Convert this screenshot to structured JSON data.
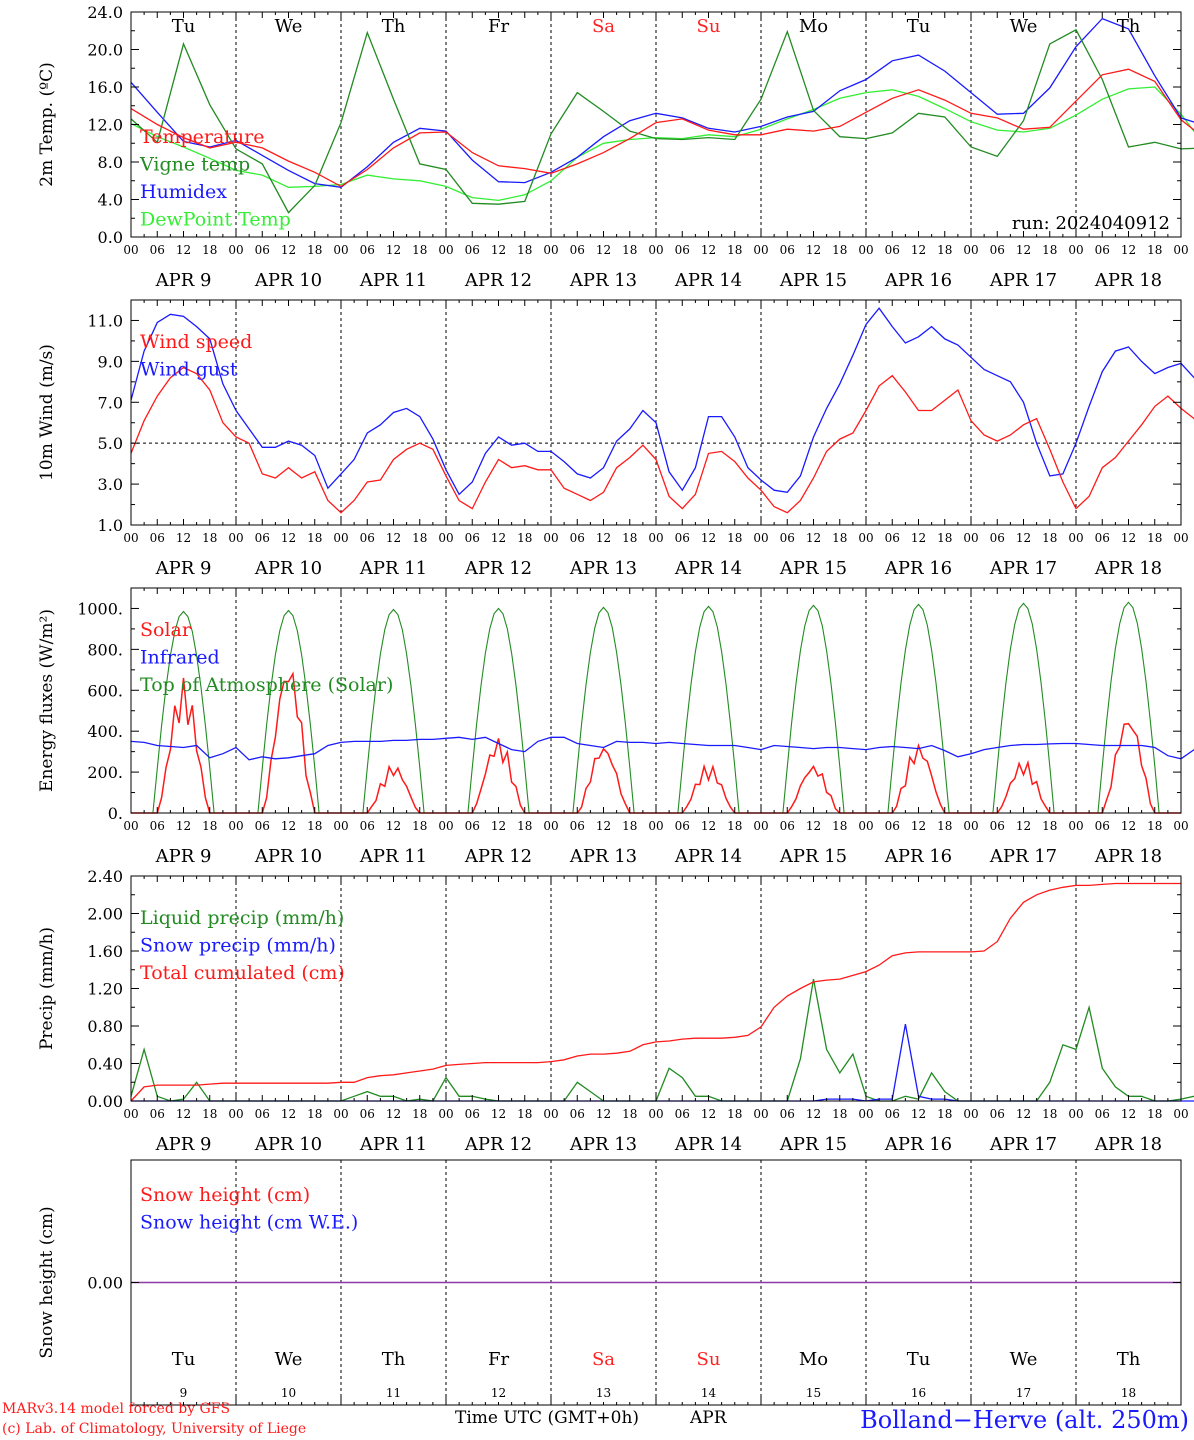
{
  "days": [
    "Tu",
    "We",
    "Th",
    "Fr",
    "Sa",
    "Su",
    "Mo",
    "Tu",
    "We",
    "Th"
  ],
  "weekend_days": [
    4,
    5
  ],
  "date_labels": [
    "APR  9",
    "APR 10",
    "APR 11",
    "APR 12",
    "APR 13",
    "APR 14",
    "APR 15",
    "APR 16",
    "APR 17",
    "APR 18"
  ],
  "hour_ticks": [
    "00",
    "06",
    "12",
    "18"
  ],
  "bottom_day_numbers": [
    "9",
    "10",
    "11",
    "12",
    "13",
    "14",
    "15",
    "16",
    "17",
    "18"
  ],
  "colors": {
    "red": "#ff1a1a",
    "green": "#228b22",
    "blue": "#1a1aff",
    "lightgreen": "#33ee33",
    "purple": "#8b3aa8",
    "weekend": "#ff2222"
  },
  "footer": {
    "model": "MARv3.14 model forced by GFS",
    "lab": "(c) Lab. of Climatology, University of Liege",
    "xlabel": "Time UTC (GMT+0h)",
    "month": "APR",
    "station": "Bolland−Herve (alt. 250m)"
  },
  "chart_data": [
    {
      "id": "temperature",
      "type": "line",
      "ylabel": "2m Temp. (ºC)",
      "ylim": [
        0,
        24
      ],
      "yticks": [
        "0.0",
        "4.0",
        "8.0",
        "12.0",
        "16.0",
        "20.0",
        "24.0"
      ],
      "annotation": "run: 2024040912",
      "show_days": true,
      "hour_step": 6,
      "series": [
        {
          "name": "Temperature",
          "color": "red",
          "values": [
            13.7,
            12,
            10.6,
            9.5,
            10.1,
            9.5,
            8.1,
            6.9,
            5.4,
            7.2,
            9.5,
            11.1,
            11.2,
            9,
            7.6,
            7.3,
            6.8,
            7.8,
            9,
            10.5,
            12.2,
            12.6,
            11.4,
            10.9,
            10.9,
            11.5,
            11.3,
            11.8,
            13.3,
            14.8,
            15.7,
            14.6,
            13.2,
            12.7,
            11.5,
            11.7,
            14.5,
            17.3,
            17.9,
            16.6,
            12.5,
            10.3,
            9.8,
            9.9,
            9.6,
            9,
            8.6,
            7.6,
            6.1,
            5.6,
            5.9,
            6,
            5.7,
            6.1,
            5.5,
            5.1,
            4.9,
            4.6,
            4,
            3.4,
            4.7,
            5.4,
            5.4,
            3.9,
            3.3,
            3,
            3.7,
            3.1,
            3.5,
            4.2,
            6.6,
            7.6,
            7.2,
            6.4,
            5.8,
            6.2,
            7.6,
            8.8,
            6.8,
            4.6
          ]
        },
        {
          "name": "Vigne temp",
          "color": "green",
          "values": [
            12.6,
            10.1,
            20.6,
            14.1,
            9.4,
            7.8,
            2.6,
            5.5,
            12.2,
            21.8,
            14.7,
            7.8,
            7.2,
            3.6,
            3.5,
            3.8,
            11,
            15.4,
            13.4,
            11.3,
            10.5,
            10.4,
            10.6,
            10.4,
            14.7,
            21.9,
            13.5,
            10.7,
            10.5,
            11.1,
            13.2,
            12.8,
            9.6,
            8.6,
            12.4,
            20.6,
            22.1,
            16.8,
            9.6,
            10.1,
            9.4,
            9.5,
            12.1,
            13.1,
            13.7,
            7,
            6.5,
            7.7,
            4.8,
            4.4,
            5,
            4.7,
            5.2,
            9.9,
            5.3,
            4.2,
            4.4,
            4.2,
            3.6,
            3.3,
            4.1,
            11.2,
            5,
            1,
            0,
            1.3,
            4.7,
            2.6,
            4.1,
            6.2,
            8.6,
            7.8,
            6.8,
            6.1,
            5.9,
            9.5,
            13.3,
            15.8,
            7.2,
            1.6
          ]
        },
        {
          "name": "Humidex",
          "color": "blue",
          "values": [
            16.5,
            13.3,
            10.2,
            9.6,
            10.3,
            8.7,
            7.1,
            5.7,
            5.3,
            7.5,
            10.1,
            11.6,
            11.3,
            8.2,
            5.9,
            5.8,
            6.9,
            8.5,
            10.7,
            12.4,
            13.2,
            12.7,
            11.6,
            11.2,
            11.8,
            12.8,
            13.4,
            15.6,
            16.8,
            18.8,
            19.4,
            17.7,
            15.4,
            13.1,
            13.2,
            15.9,
            20.3,
            23.3,
            22.2,
            17.2,
            12.7,
            11.8,
            10.7,
            10,
            9.5,
            8.4,
            7.8,
            6.1,
            6,
            5.3,
            5.4,
            5.4,
            5.8,
            5.6,
            5.2,
            4.6,
            4.2,
            3.8,
            3,
            2.3,
            1.4,
            4.3,
            5.1,
            3,
            2.4,
            1.7,
            3.1,
            3.2,
            3.7,
            5.7,
            6.9,
            7.4,
            6.9,
            6.2,
            5.6,
            6.3,
            7.9,
            8.5,
            6.1,
            3.9
          ]
        },
        {
          "name": "DewPoint Temp",
          "color": "lightgreen",
          "values": [
            12.1,
            10.7,
            9.6,
            8.4,
            7.1,
            6.6,
            5.3,
            5.4,
            5.6,
            6.6,
            6.2,
            6,
            5.4,
            4.2,
            3.9,
            4.5,
            6,
            8.5,
            10,
            10.4,
            10.6,
            10.5,
            10.9,
            10.7,
            11.5,
            12.6,
            13.6,
            14.8,
            15.4,
            15.7,
            15,
            13.7,
            12.3,
            11.4,
            11.2,
            11.6,
            13,
            14.7,
            15.8,
            16,
            13.1,
            9.4,
            9.2,
            9.2,
            8.6,
            8.5,
            7.8,
            6.6,
            5.2,
            5.3,
            5.7,
            6.2,
            5.8,
            5.8,
            5.1,
            4.8,
            4.4,
            3.9,
            3.2,
            3,
            3.5,
            5.2,
            4.1,
            2.5,
            2.3,
            2.3,
            2.7,
            3,
            3.3,
            5.8,
            6.5,
            7.2,
            6.7,
            6.3,
            5.9,
            6.1,
            6.7,
            6.6,
            5.5,
            4.9
          ]
        }
      ]
    },
    {
      "id": "wind",
      "type": "line",
      "ylabel": "10m Wind (m/s)",
      "ylim": [
        1,
        12
      ],
      "yticks": [
        "1.0",
        "3.0",
        "5.0",
        "7.0",
        "9.0",
        "11.0"
      ],
      "refline": 5,
      "show_days": false,
      "hour_step": 3,
      "series": [
        {
          "name": "Wind speed",
          "color": "red",
          "values": [
            4.5,
            6.1,
            7.3,
            8.2,
            8.7,
            8.4,
            7.6,
            6,
            5.3,
            5,
            3.5,
            3.3,
            3.8,
            3.3,
            3.6,
            2.2,
            1.6,
            2.2,
            3.1,
            3.2,
            4.2,
            4.7,
            5,
            4.7,
            3.4,
            2.2,
            1.8,
            3.1,
            4.2,
            3.8,
            3.9,
            3.7,
            3.7,
            2.8,
            2.5,
            2.2,
            2.6,
            3.8,
            4.3,
            4.9,
            4.2,
            2.4,
            1.8,
            2.5,
            4.5,
            4.6,
            4.1,
            3.3,
            2.7,
            1.9,
            1.6,
            2.2,
            3.3,
            4.6,
            5.2,
            5.5,
            6.6,
            7.8,
            8.3,
            7.5,
            6.6,
            6.6,
            7.1,
            7.6,
            6.1,
            5.4,
            5.1,
            5.4,
            5.9,
            6.2,
            4.7,
            3.1,
            1.8,
            2.4,
            3.8,
            4.3,
            5.1,
            5.9,
            6.8,
            7.3,
            6.7,
            6.2,
            5.6,
            5.2,
            5.4,
            6.1,
            6.4,
            6,
            5.7,
            4.5,
            2.4,
            3.4
          ]
        },
        {
          "name": "Wind gust",
          "color": "blue",
          "values": [
            7.1,
            9.5,
            10.9,
            11.3,
            11.2,
            10.7,
            10.1,
            7.9,
            6.6,
            5.7,
            4.8,
            4.8,
            5.1,
            4.9,
            4.4,
            2.8,
            3.5,
            4.2,
            5.5,
            5.9,
            6.5,
            6.7,
            6.3,
            5.2,
            3.7,
            2.5,
            3.1,
            4.5,
            5.3,
            4.9,
            5,
            4.6,
            4.6,
            4.1,
            3.5,
            3.3,
            3.8,
            5.1,
            5.7,
            6.6,
            6,
            3.6,
            2.7,
            3.8,
            6.3,
            6.3,
            5.3,
            3.8,
            3.2,
            2.7,
            2.6,
            3.4,
            5.3,
            6.7,
            7.9,
            9.3,
            10.8,
            11.6,
            10.7,
            9.9,
            10.2,
            10.7,
            10.1,
            9.8,
            9.2,
            8.6,
            8.3,
            8,
            7,
            5,
            3.4,
            3.5,
            5,
            6.8,
            8.5,
            9.5,
            9.7,
            9,
            8.4,
            8.7,
            8.9,
            8.2,
            7.7,
            8.5,
            8.7,
            8.8,
            8.5,
            7.9,
            6.4,
            3.9,
            2.9,
            5.4
          ]
        }
      ]
    },
    {
      "id": "energy",
      "type": "line",
      "ylabel": "Energy fluxes (W/m²)",
      "ylim": [
        0,
        1100
      ],
      "yticks": [
        "0.",
        "200.",
        "400.",
        "600.",
        "800.",
        "1000."
      ],
      "show_days": false,
      "hour_step": 3,
      "daily_peaks_solar": [
        660,
        750,
        240,
        370,
        340,
        240,
        240,
        340,
        260,
        490
      ],
      "daily_peaks_toa": [
        985,
        990,
        995,
        1000,
        1005,
        1010,
        1015,
        1020,
        1025,
        1030
      ],
      "series": [
        {
          "name": "Solar",
          "color": "red",
          "values": []
        },
        {
          "name": "Infrared",
          "color": "blue",
          "values": [
            350,
            345,
            330,
            325,
            320,
            330,
            270,
            290,
            320,
            260,
            275,
            265,
            270,
            280,
            290,
            330,
            345,
            350,
            350,
            350,
            355,
            355,
            360,
            360,
            365,
            370,
            360,
            370,
            340,
            310,
            300,
            350,
            370,
            370,
            340,
            330,
            320,
            350,
            345,
            345,
            340,
            345,
            340,
            335,
            330,
            330,
            330,
            320,
            310,
            330,
            325,
            320,
            315,
            320,
            320,
            315,
            310,
            320,
            325,
            320,
            315,
            330,
            305,
            275,
            290,
            310,
            320,
            330,
            335,
            335,
            338,
            340,
            340,
            335,
            330,
            330,
            330,
            330,
            320,
            280,
            265,
            310
          ]
        },
        {
          "name": "Top of Atmosphere (Solar)",
          "color": "green",
          "values": []
        }
      ]
    },
    {
      "id": "precip",
      "type": "line",
      "ylabel": "Precip (mm/h)",
      "ylim": [
        0,
        2.4
      ],
      "yticks": [
        "0.00",
        "0.40",
        "0.80",
        "1.20",
        "1.60",
        "2.00",
        "2.40"
      ],
      "show_days": false,
      "hour_step": 3,
      "series": [
        {
          "name": "Liquid precip (mm/h)",
          "color": "green",
          "values": [
            0.05,
            0.55,
            0.05,
            0,
            0.02,
            0.2,
            0,
            0,
            0,
            0,
            0,
            0,
            0,
            0,
            0,
            0,
            0,
            0.05,
            0.1,
            0.05,
            0.05,
            0,
            0.02,
            0,
            0.25,
            0.05,
            0.05,
            0.02,
            0,
            0,
            0,
            0,
            0,
            0,
            0.2,
            0.1,
            0,
            0,
            0,
            0,
            0,
            0.35,
            0.25,
            0.05,
            0.05,
            0,
            0,
            0,
            0,
            0,
            0,
            0.45,
            1.3,
            0.55,
            0.3,
            0.5,
            0.05,
            0,
            0,
            0.05,
            0.02,
            0.3,
            0.1,
            0,
            0,
            0,
            0,
            0,
            0,
            0,
            0.2,
            0.6,
            0.55,
            1,
            0.35,
            0.15,
            0.05,
            0.05,
            0,
            0,
            0.02,
            0.05
          ]
        },
        {
          "name": "Snow precip (mm/h)",
          "color": "blue",
          "values": [
            0,
            0,
            0,
            0,
            0,
            0,
            0,
            0,
            0,
            0,
            0,
            0,
            0,
            0,
            0,
            0,
            0,
            0,
            0,
            0,
            0,
            0,
            0,
            0,
            0,
            0,
            0,
            0,
            0,
            0,
            0,
            0,
            0,
            0,
            0,
            0,
            0,
            0,
            0,
            0,
            0,
            0,
            0,
            0,
            0,
            0,
            0,
            0,
            0,
            0,
            0,
            0,
            0,
            0.02,
            0.02,
            0.02,
            0,
            0.02,
            0.02,
            0.82,
            0.05,
            0.02,
            0.02,
            0,
            0,
            0,
            0,
            0,
            0,
            0,
            0,
            0,
            0,
            0,
            0,
            0,
            0,
            0,
            0,
            0,
            0,
            0
          ]
        },
        {
          "name": "Total cumulated (cm)",
          "color": "red",
          "values": [
            0,
            0.15,
            0.17,
            0.17,
            0.17,
            0.17,
            0.18,
            0.19,
            0.19,
            0.19,
            0.19,
            0.19,
            0.19,
            0.19,
            0.19,
            0.19,
            0.2,
            0.2,
            0.25,
            0.27,
            0.28,
            0.3,
            0.32,
            0.34,
            0.38,
            0.39,
            0.4,
            0.41,
            0.41,
            0.41,
            0.41,
            0.41,
            0.42,
            0.44,
            0.48,
            0.5,
            0.5,
            0.51,
            0.53,
            0.6,
            0.63,
            0.64,
            0.66,
            0.67,
            0.67,
            0.67,
            0.68,
            0.7,
            0.79,
            1.0,
            1.12,
            1.2,
            1.27,
            1.29,
            1.3,
            1.34,
            1.38,
            1.45,
            1.55,
            1.58,
            1.59,
            1.59,
            1.59,
            1.59,
            1.59,
            1.6,
            1.7,
            1.95,
            2.12,
            2.2,
            2.25,
            2.28,
            2.3,
            2.3,
            2.31,
            2.32,
            2.32,
            2.32,
            2.32,
            2.32,
            2.32
          ]
        }
      ]
    },
    {
      "id": "snow",
      "type": "line",
      "ylabel": "Snow height (cm)",
      "ylim": [
        -1,
        1
      ],
      "yticks": [
        "0.00"
      ],
      "show_days": true,
      "series": [
        {
          "name": "Snow height (cm)",
          "color": "red",
          "values": [
            0,
            0
          ]
        },
        {
          "name": "Snow height (cm W.E.)",
          "color": "blue",
          "values": [
            0,
            0
          ]
        }
      ]
    }
  ]
}
